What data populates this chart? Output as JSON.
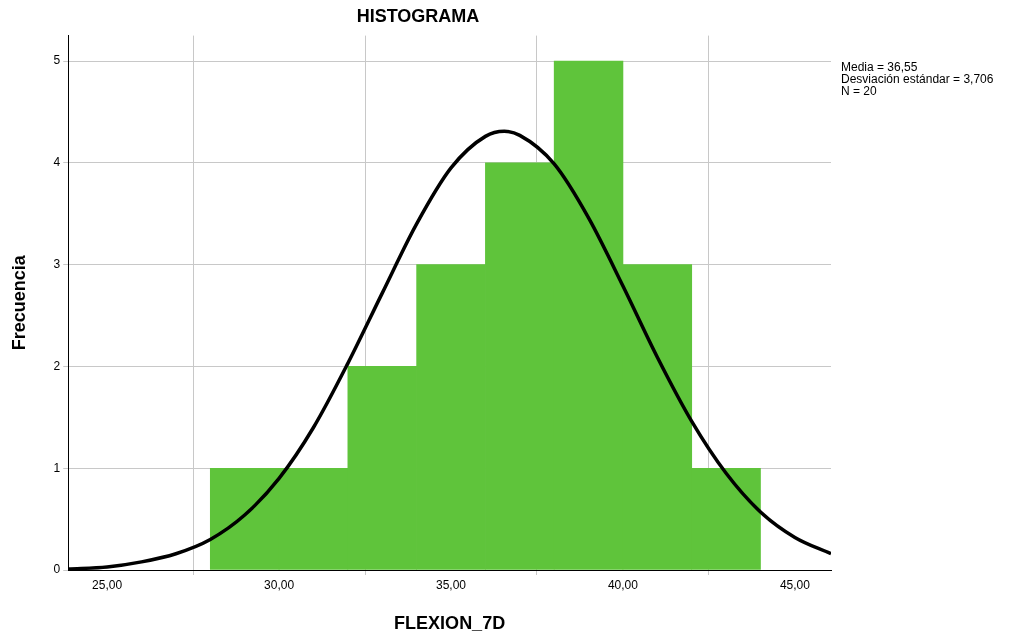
{
  "chart_data": {
    "type": "histogram",
    "title": "HISTOGRAMA",
    "xlabel": "FLEXION_7D",
    "ylabel": "Frecuencia",
    "bins": [
      28,
      30,
      32,
      34,
      36,
      38,
      40,
      42,
      44
    ],
    "values": [
      1,
      1,
      2,
      3,
      4,
      5,
      3,
      1
    ],
    "color": "#5fc43b",
    "series": [
      {
        "type": "line",
        "color": "#000000",
        "marker": "none",
        "x": [
          23.87,
          25,
          26,
          27,
          28,
          29,
          30,
          31,
          32,
          33,
          34,
          35,
          36,
          36.55,
          37,
          38,
          39,
          40,
          41,
          42,
          43,
          44,
          45,
          46.05
        ],
        "values": [
          0.01,
          0.03,
          0.08,
          0.16,
          0.3,
          0.54,
          0.9,
          1.4,
          2.03,
          2.72,
          3.4,
          3.95,
          4.26,
          4.31,
          4.27,
          3.99,
          3.46,
          2.79,
          2.09,
          1.46,
          0.95,
          0.57,
          0.32,
          0.16
        ]
      }
    ],
    "xlim": [
      23.87,
      46.05
    ],
    "xticks": [
      {
        "value": 25,
        "label": "25,00"
      },
      {
        "value": 30,
        "label": "30,00"
      },
      {
        "value": 35,
        "label": "35,00"
      },
      {
        "value": 40,
        "label": "40,00"
      },
      {
        "value": 45,
        "label": "45,00"
      }
    ],
    "ylim": [
      0,
      5.25
    ],
    "yticks": [
      0,
      1,
      2,
      3,
      4,
      5
    ],
    "grid": true,
    "annotations": [
      "Media = 36,55",
      "Desviación estándar = 3,706",
      "N = 20"
    ]
  }
}
